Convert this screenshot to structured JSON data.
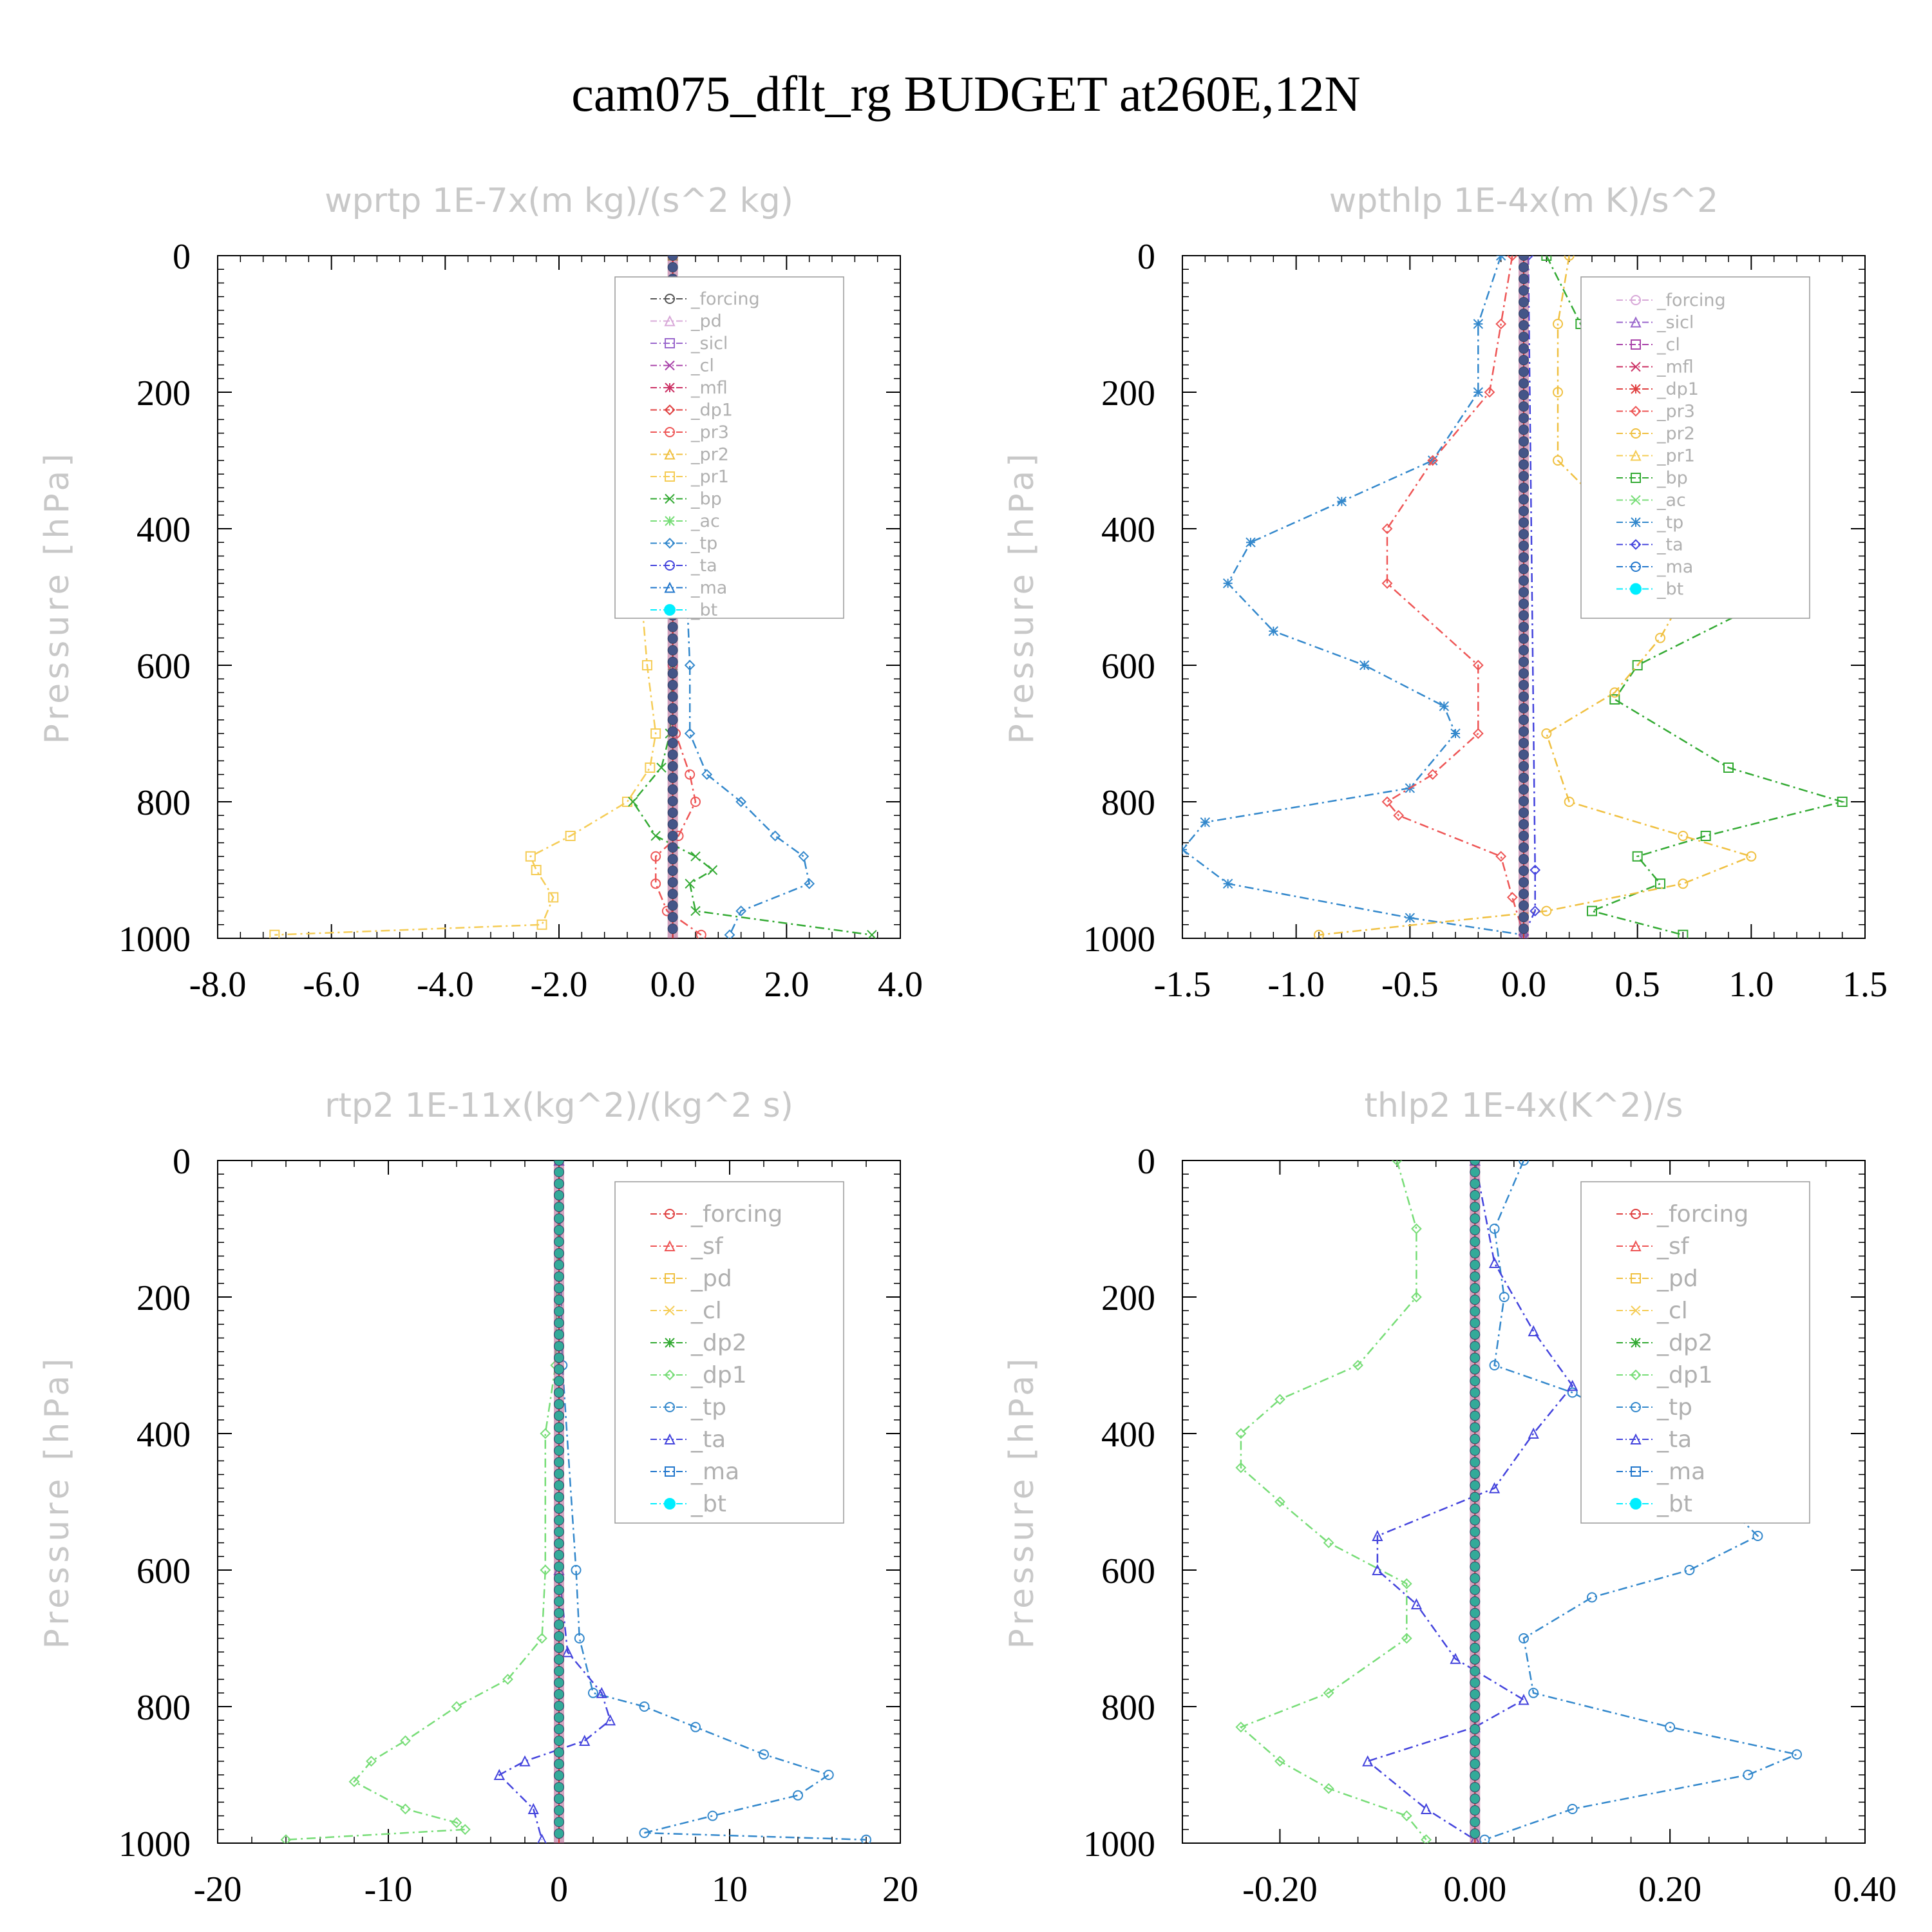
{
  "title": "cam075_dflt_rg  BUDGET at260E,12N",
  "colors": {
    "forcing": "#555555",
    "pd": "#d8a8d8",
    "sicl": "#9966cc",
    "cl_purple": "#aa44aa",
    "mfl": "#cc3366",
    "dp1_red": "#e04040",
    "pr3": "#ee5555",
    "pr2": "#f0c040",
    "pr1": "#f5cc55",
    "bp": "#33aa33",
    "ac": "#77dd77",
    "tp": "#3388cc",
    "ta": "#4444dd",
    "ma": "#2277cc",
    "bt": "#00eeff"
  },
  "chart_data": [
    {
      "type": "line",
      "title": "wprtp   1E-7x(m kg)/(s^2 kg)",
      "ylabel": "Pressure [hPa]",
      "xlim": [
        -8,
        4
      ],
      "ylim": [
        1000,
        0
      ],
      "xticks": [
        "-8.0",
        "-6.0",
        "-4.0",
        "-2.0",
        "0.0",
        "2.0",
        "4.0"
      ],
      "xtick_values": [
        -8,
        -6,
        -4,
        -2,
        0,
        2,
        4
      ],
      "yticks": [
        "0",
        "200",
        "400",
        "600",
        "800",
        "1000"
      ],
      "ytick_values": [
        0,
        200,
        400,
        600,
        800,
        1000
      ],
      "legend": [
        "_forcing",
        "_pd",
        "_sicl",
        "_cl",
        "_mfl",
        "_dp1",
        "_pr3",
        "_pr2",
        "_pr1",
        "_bp",
        "_ac",
        "_tp",
        "_ta",
        "_ma",
        "_bt"
      ],
      "legend_colors": [
        "#555555",
        "#d8a8d8",
        "#9966cc",
        "#aa44aa",
        "#cc3366",
        "#e04040",
        "#ee5555",
        "#f0c040",
        "#f5cc55",
        "#33aa33",
        "#77dd77",
        "#3388cc",
        "#4444dd",
        "#2277cc",
        "#00eeff"
      ],
      "series": [
        {
          "legend_index": 8,
          "p": [
            0,
            100,
            200,
            300,
            400,
            500,
            600,
            700,
            750,
            800,
            850,
            880,
            900,
            940,
            980,
            995
          ],
          "v": [
            0,
            0,
            -0.05,
            -0.2,
            -0.45,
            -0.55,
            -0.45,
            -0.3,
            -0.4,
            -0.8,
            -1.8,
            -2.5,
            -2.4,
            -2.1,
            -2.3,
            -7.0
          ]
        },
        {
          "legend_index": 9,
          "p": [
            0,
            300,
            600,
            700,
            750,
            800,
            850,
            880,
            900,
            920,
            960,
            995
          ],
          "v": [
            0,
            0,
            0,
            -0.05,
            -0.2,
            -0.7,
            -0.3,
            0.4,
            0.7,
            0.3,
            0.4,
            3.5
          ]
        },
        {
          "legend_index": 11,
          "p": [
            0,
            300,
            400,
            600,
            700,
            760,
            800,
            850,
            880,
            920,
            960,
            995
          ],
          "v": [
            0,
            0.05,
            0.2,
            0.3,
            0.3,
            0.6,
            1.2,
            1.8,
            2.3,
            2.4,
            1.2,
            1.0
          ]
        },
        {
          "legend_index": 6,
          "p": [
            0,
            600,
            700,
            760,
            800,
            850,
            880,
            920,
            960,
            995
          ],
          "v": [
            0,
            0,
            0.05,
            0.3,
            0.4,
            0.1,
            -0.3,
            -0.3,
            -0.1,
            0.5
          ]
        }
      ]
    },
    {
      "type": "line",
      "title": "wpthlp   1E-4x(m K)/s^2",
      "ylabel": "Pressure [hPa]",
      "xlim": [
        -1.5,
        1.5
      ],
      "ylim": [
        1000,
        0
      ],
      "xticks": [
        "-1.5",
        "-1.0",
        "-0.5",
        "0.0",
        "0.5",
        "1.0",
        "1.5"
      ],
      "xtick_values": [
        -1.5,
        -1.0,
        -0.5,
        0.0,
        0.5,
        1.0,
        1.5
      ],
      "yticks": [
        "0",
        "200",
        "400",
        "600",
        "800",
        "1000"
      ],
      "ytick_values": [
        0,
        200,
        400,
        600,
        800,
        1000
      ],
      "legend": [
        "_forcing",
        "_sicl",
        "_cl",
        "_mfl",
        "_dp1",
        "_pr3",
        "_pr2",
        "_pr1",
        "_bp",
        "_ac",
        "_tp",
        "_ta",
        "_ma",
        "_bt"
      ],
      "legend_colors": [
        "#d8a8d8",
        "#9966cc",
        "#aa44aa",
        "#cc3366",
        "#e04040",
        "#ee5555",
        "#f0c040",
        "#f5cc55",
        "#33aa33",
        "#77dd77",
        "#3388cc",
        "#4444dd",
        "#2277cc",
        "#00eeff"
      ],
      "series": [
        {
          "legend_index": 10,
          "p": [
            0,
            100,
            200,
            300,
            360,
            420,
            480,
            550,
            600,
            660,
            700,
            780,
            830,
            870,
            920,
            970,
            995
          ],
          "v": [
            -0.1,
            -0.2,
            -0.2,
            -0.4,
            -0.8,
            -1.2,
            -1.3,
            -1.1,
            -0.7,
            -0.35,
            -0.3,
            -0.5,
            -1.4,
            -1.5,
            -1.3,
            -0.5,
            0.0
          ]
        },
        {
          "legend_index": 5,
          "p": [
            0,
            100,
            200,
            300,
            400,
            480,
            600,
            700,
            760,
            800,
            820,
            880,
            940,
            995
          ],
          "v": [
            -0.05,
            -0.1,
            -0.15,
            -0.4,
            -0.6,
            -0.6,
            -0.2,
            -0.2,
            -0.4,
            -0.6,
            -0.55,
            -0.1,
            -0.05,
            0.0
          ]
        },
        {
          "legend_index": 8,
          "p": [
            0,
            100,
            200,
            300,
            400,
            500,
            600,
            650,
            750,
            800,
            850,
            880,
            920,
            960,
            995
          ],
          "v": [
            0.1,
            0.25,
            0.4,
            0.6,
            1.2,
            1.1,
            0.5,
            0.4,
            0.9,
            1.4,
            0.8,
            0.5,
            0.6,
            0.3,
            0.7
          ]
        },
        {
          "legend_index": 6,
          "p": [
            0,
            100,
            200,
            300,
            350,
            400,
            500,
            560,
            640,
            700,
            800,
            850,
            880,
            920,
            960,
            995
          ],
          "v": [
            0.2,
            0.15,
            0.15,
            0.15,
            0.3,
            0.5,
            0.7,
            0.6,
            0.4,
            0.1,
            0.2,
            0.7,
            1.0,
            0.7,
            0.1,
            -0.9
          ]
        },
        {
          "legend_index": 11,
          "p": [
            0,
            900,
            960,
            995
          ],
          "v": [
            0.02,
            0.05,
            0.05,
            0.0
          ]
        }
      ]
    },
    {
      "type": "line",
      "title": "rtp2   1E-11x(kg^2)/(kg^2 s)",
      "ylabel": "Pressure [hPa]",
      "xlim": [
        -20,
        20
      ],
      "ylim": [
        1000,
        0
      ],
      "xticks": [
        "-20",
        "-10",
        "0",
        "10",
        "20"
      ],
      "xtick_values": [
        -20,
        -10,
        0,
        10,
        20
      ],
      "yticks": [
        "0",
        "200",
        "400",
        "600",
        "800",
        "1000"
      ],
      "ytick_values": [
        0,
        200,
        400,
        600,
        800,
        1000
      ],
      "legend": [
        "_forcing",
        "_sf",
        "_pd",
        "_cl",
        "_dp2",
        "_dp1",
        "_tp",
        "_ta",
        "_ma",
        "_bt"
      ],
      "legend_colors": [
        "#e04040",
        "#ee5555",
        "#f0c040",
        "#f5cc55",
        "#33aa33",
        "#77dd77",
        "#3388cc",
        "#4444dd",
        "#2277cc",
        "#00eeff"
      ],
      "series": [
        {
          "legend_index": 5,
          "p": [
            0,
            300,
            400,
            600,
            700,
            760,
            800,
            850,
            880,
            910,
            950,
            970,
            980,
            995
          ],
          "v": [
            0,
            -0.2,
            -0.8,
            -0.8,
            -1.0,
            -3.0,
            -6.0,
            -9.0,
            -11.0,
            -12.0,
            -9.0,
            -6.0,
            -5.5,
            -16.0
          ]
        },
        {
          "legend_index": 6,
          "p": [
            0,
            300,
            600,
            700,
            780,
            800,
            830,
            870,
            900,
            930,
            960,
            985,
            995
          ],
          "v": [
            0,
            0.2,
            1.0,
            1.2,
            2.0,
            5.0,
            8.0,
            12.0,
            15.8,
            14.0,
            9.0,
            5.0,
            18.0
          ]
        },
        {
          "legend_index": 7,
          "p": [
            0,
            600,
            720,
            780,
            820,
            850,
            880,
            900,
            950,
            995
          ],
          "v": [
            0,
            0,
            0.5,
            2.5,
            3.0,
            1.5,
            -2.0,
            -3.5,
            -1.5,
            -1.0
          ]
        }
      ]
    },
    {
      "type": "line",
      "title": "thlp2   1E-4x(K^2)/s",
      "ylabel": "Pressure [hPa]",
      "xlim": [
        -0.3,
        0.4
      ],
      "ylim": [
        1000,
        0
      ],
      "xticks": [
        "-0.20",
        "0.00",
        "0.20",
        "0.40"
      ],
      "xtick_values": [
        -0.2,
        0.0,
        0.2,
        0.4
      ],
      "yticks": [
        "0",
        "200",
        "400",
        "600",
        "800",
        "1000"
      ],
      "ytick_values": [
        0,
        200,
        400,
        600,
        800,
        1000
      ],
      "legend": [
        "_forcing",
        "_sf",
        "_pd",
        "_cl",
        "_dp2",
        "_dp1",
        "_tp",
        "_ta",
        "_ma",
        "_bt"
      ],
      "legend_colors": [
        "#e04040",
        "#ee5555",
        "#f0c040",
        "#f5cc55",
        "#33aa33",
        "#77dd77",
        "#3388cc",
        "#4444dd",
        "#2277cc",
        "#00eeff"
      ],
      "series": [
        {
          "legend_index": 5,
          "p": [
            0,
            100,
            200,
            300,
            350,
            400,
            450,
            500,
            560,
            620,
            700,
            780,
            830,
            880,
            920,
            960,
            995
          ],
          "v": [
            -0.08,
            -0.06,
            -0.06,
            -0.12,
            -0.2,
            -0.24,
            -0.24,
            -0.2,
            -0.15,
            -0.07,
            -0.07,
            -0.15,
            -0.24,
            -0.2,
            -0.15,
            -0.07,
            -0.05
          ]
        },
        {
          "legend_index": 6,
          "p": [
            0,
            100,
            200,
            300,
            340,
            400,
            480,
            550,
            600,
            640,
            700,
            780,
            830,
            870,
            900,
            950,
            995
          ],
          "v": [
            0.05,
            0.02,
            0.03,
            0.02,
            0.1,
            0.18,
            0.24,
            0.29,
            0.22,
            0.12,
            0.05,
            0.06,
            0.2,
            0.33,
            0.28,
            0.1,
            0.01
          ]
        },
        {
          "legend_index": 7,
          "p": [
            0,
            150,
            250,
            330,
            400,
            480,
            550,
            600,
            650,
            730,
            790,
            830,
            880,
            950,
            995
          ],
          "v": [
            0,
            0.02,
            0.06,
            0.1,
            0.06,
            0.02,
            -0.1,
            -0.1,
            -0.06,
            -0.02,
            0.05,
            0.0,
            -0.11,
            -0.05,
            0.0
          ]
        }
      ]
    }
  ]
}
